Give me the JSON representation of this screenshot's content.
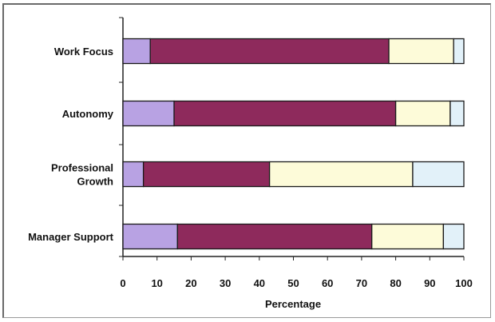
{
  "chart_data": {
    "type": "bar",
    "orientation": "horizontal",
    "stacked": true,
    "categories": [
      [
        "Work Focus"
      ],
      [
        "Autonomy"
      ],
      [
        "Professional",
        "Growth"
      ],
      [
        "Manager Support"
      ]
    ],
    "series": [
      {
        "color": "#b8a2e3",
        "values": [
          8,
          15,
          6,
          16
        ]
      },
      {
        "color": "#8e2a5c",
        "values": [
          70,
          65,
          37,
          57
        ]
      },
      {
        "color": "#fdfbd9",
        "values": [
          19,
          16,
          42,
          21
        ]
      },
      {
        "color": "#e2f1f9",
        "values": [
          3,
          4,
          15,
          6
        ]
      }
    ],
    "x_ticks": [
      "0",
      "10",
      "20",
      "30",
      "40",
      "50",
      "60",
      "70",
      "80",
      "90",
      "100"
    ],
    "xlim": [
      0,
      100
    ],
    "xlabel": "Percentage",
    "title": "",
    "legend": false,
    "grid": false
  }
}
